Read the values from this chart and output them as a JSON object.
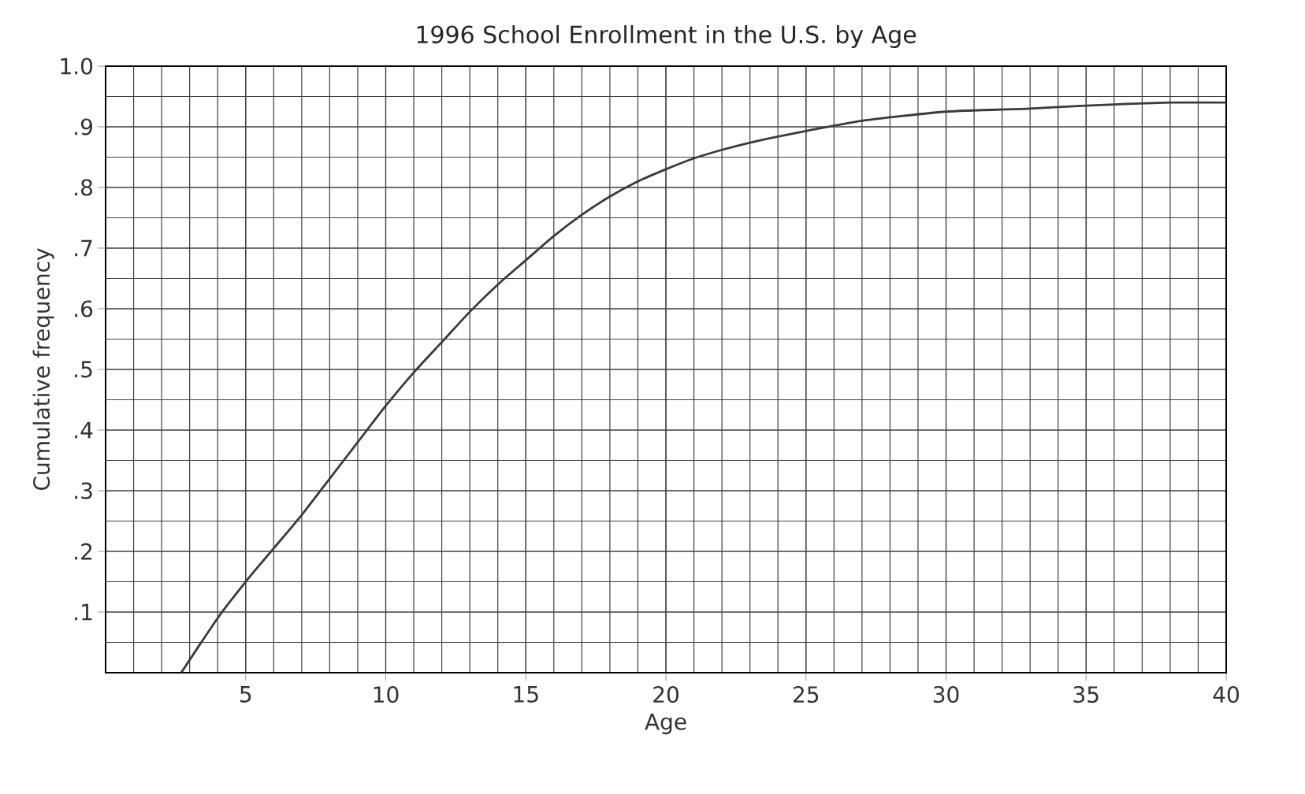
{
  "chart_data": {
    "type": "line",
    "title": "1996 School Enrollment in the U.S. by Age",
    "xlabel": "Age",
    "ylabel": "Cumulative frequency",
    "x": [
      2.7,
      4,
      5,
      6,
      7,
      8,
      9,
      10,
      11,
      12,
      13,
      14,
      15,
      16,
      17,
      18,
      19,
      20,
      21,
      22,
      23,
      24,
      25,
      27,
      30,
      33,
      35,
      38,
      40
    ],
    "series": [
      {
        "color": "#3a3a3a",
        "values": [
          0,
          0.09,
          0.15,
          0.205,
          0.26,
          0.32,
          0.38,
          0.44,
          0.495,
          0.545,
          0.595,
          0.64,
          0.68,
          0.72,
          0.755,
          0.785,
          0.81,
          0.83,
          0.848,
          0.862,
          0.874,
          0.884,
          0.893,
          0.91,
          0.925,
          0.93,
          0.935,
          0.94,
          0.94
        ]
      }
    ],
    "xlim": [
      0,
      40
    ],
    "ylim": [
      0,
      1.0
    ],
    "xticks": [
      5,
      10,
      15,
      20,
      25,
      30,
      35,
      40
    ],
    "yticks": [
      {
        "value": 0.1,
        "label": ".1"
      },
      {
        "value": 0.2,
        "label": ".2"
      },
      {
        "value": 0.3,
        "label": ".3"
      },
      {
        "value": 0.4,
        "label": ".4"
      },
      {
        "value": 0.5,
        "label": ".5"
      },
      {
        "value": 0.6,
        "label": ".6"
      },
      {
        "value": 0.7,
        "label": ".7"
      },
      {
        "value": 0.8,
        "label": ".8"
      },
      {
        "value": 0.9,
        "label": ".9"
      },
      {
        "value": 1.0,
        "label": "1.0"
      }
    ],
    "grid": true,
    "marker": "none",
    "line_style": "solid"
  }
}
